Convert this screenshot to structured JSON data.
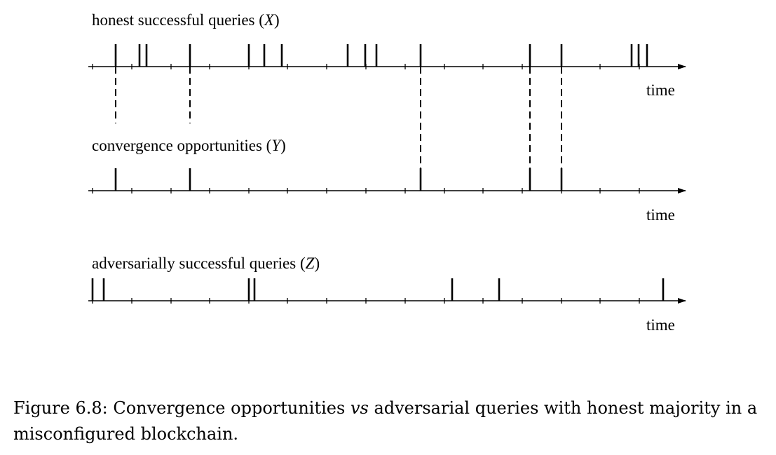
{
  "timelines": [
    {
      "id": "x",
      "label": "honest successful queries",
      "var": "X",
      "time_label": "time",
      "events": [
        165,
        199,
        209,
        271,
        355,
        377,
        402,
        496,
        521,
        537,
        600,
        756,
        801,
        901,
        911,
        923
      ]
    },
    {
      "id": "y",
      "label": "convergence opportunities",
      "var": "Y",
      "time_label": "time",
      "events": [
        165,
        271,
        600,
        756,
        801
      ]
    },
    {
      "id": "z",
      "label": "adversarially successful queries",
      "var": "Z",
      "time_label": "time",
      "events": [
        132,
        148,
        355,
        363,
        645,
        712,
        946
      ]
    }
  ],
  "ticks": [
    132,
    188,
    244,
    299,
    355,
    410,
    466,
    522,
    578,
    634,
    689,
    745,
    801,
    856,
    912
  ],
  "dashed_links": [
    {
      "t": 165,
      "from": "x",
      "to": "x-gap"
    },
    {
      "t": 271,
      "from": "x",
      "to": "x-gap"
    },
    {
      "t": 600,
      "from": "x",
      "to": "y"
    },
    {
      "t": 756,
      "from": "x",
      "to": "y"
    },
    {
      "t": 801,
      "from": "x",
      "to": "y"
    }
  ],
  "caption": {
    "prefix": "Figure 6.8: Convergence opportunities ",
    "emph": "vs",
    "suffix": " adversarial queries with honest majority in a misconfigured blockchain."
  }
}
